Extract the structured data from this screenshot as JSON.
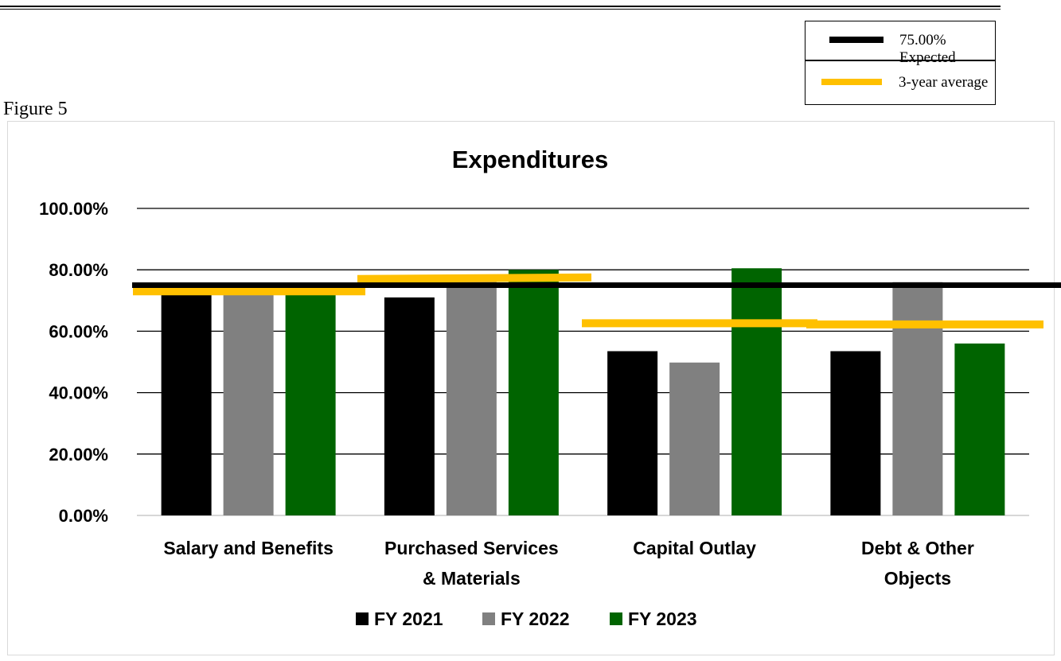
{
  "figure_label": "Figure 5",
  "legend_box": {
    "expected_label": "75.00% Expected",
    "expected_color": "#000000",
    "average_label": "3-year average",
    "average_color": "#ffc000"
  },
  "chart_data": {
    "type": "bar",
    "title": "Expenditures",
    "categories": [
      [
        "Salary and Benefits"
      ],
      [
        "Purchased Services",
        "& Materials"
      ],
      [
        "Capital Outlay"
      ],
      [
        "Debt & Other",
        "Objects"
      ]
    ],
    "series": [
      {
        "name": "FY 2021",
        "color": "#000000",
        "values": [
          73.5,
          71.0,
          53.5,
          53.5
        ]
      },
      {
        "name": "FY 2022",
        "color": "#808080",
        "values": [
          73.5,
          78.0,
          49.8,
          76.0
        ]
      },
      {
        "name": "FY 2023",
        "color": "#006400",
        "values": [
          73.5,
          80.0,
          80.5,
          56.0
        ]
      }
    ],
    "expected": 75.0,
    "three_year_average": [
      73.0,
      77.0,
      62.6,
      62.2
    ],
    "ylim": [
      0,
      100
    ],
    "yticks": [
      "0.00%",
      "20.00%",
      "40.00%",
      "60.00%",
      "80.00%",
      "100.00%"
    ],
    "grid": true,
    "legend_position": "bottom"
  }
}
